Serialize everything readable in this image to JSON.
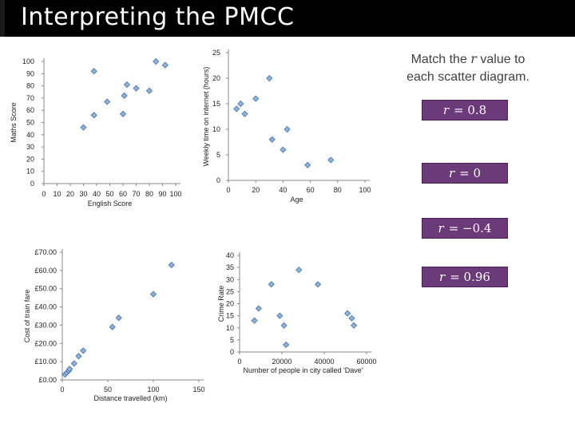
{
  "header": {
    "title": "Interpreting the PMCC"
  },
  "instruction": {
    "prefix": "Match the ",
    "variable": "r",
    "suffix": " value to each scatter diagram."
  },
  "options": [
    {
      "variable": "r",
      "value": "= 0.8"
    },
    {
      "variable": "r",
      "value": "= 0"
    },
    {
      "variable": "r",
      "value": "= −0.4"
    },
    {
      "variable": "r",
      "value": "= 0.96"
    }
  ],
  "colors": {
    "marker_fill": "#8fb3dc",
    "marker_stroke": "#3f6fa6",
    "option_bg": "#6b3a78"
  },
  "chart_data": [
    {
      "type": "scatter",
      "xlabel": "English Score",
      "ylabel": "Maths Score",
      "xlim": [
        0,
        100
      ],
      "ylim": [
        0,
        100
      ],
      "xticks": [
        "0",
        "10",
        "20",
        "30",
        "40",
        "50",
        "60",
        "70",
        "80",
        "90",
        "100"
      ],
      "yticks": [
        "0",
        "10",
        "20",
        "30",
        "40",
        "50",
        "60",
        "70",
        "80",
        "90",
        "100"
      ],
      "points": [
        [
          30,
          46
        ],
        [
          38,
          56
        ],
        [
          38,
          92
        ],
        [
          48,
          67
        ],
        [
          60,
          57
        ],
        [
          61,
          72
        ],
        [
          63,
          81
        ],
        [
          70,
          78
        ],
        [
          80,
          76
        ],
        [
          85,
          100
        ],
        [
          92,
          97
        ]
      ]
    },
    {
      "type": "scatter",
      "xlabel": "Age",
      "ylabel": "Weekly time on internet (hours)",
      "xlim": [
        0,
        100
      ],
      "ylim": [
        0,
        25
      ],
      "xticks": [
        "0",
        "20",
        "40",
        "60",
        "80",
        "100"
      ],
      "yticks": [
        "0",
        "5",
        "10",
        "15",
        "20",
        "25"
      ],
      "points": [
        [
          6,
          14
        ],
        [
          9,
          15
        ],
        [
          12,
          13
        ],
        [
          20,
          16
        ],
        [
          30,
          20
        ],
        [
          32,
          8
        ],
        [
          40,
          6
        ],
        [
          43,
          10
        ],
        [
          58,
          3
        ],
        [
          75,
          4
        ]
      ]
    },
    {
      "type": "scatter",
      "xlabel": "Distance travelled (km)",
      "ylabel": "Cost of train fare",
      "xlim": [
        0,
        150
      ],
      "ylim": [
        0,
        70
      ],
      "xticks": [
        "0",
        "50",
        "100",
        "150"
      ],
      "yticks": [
        "£0.00",
        "£10.00",
        "£20.00",
        "£30.00",
        "£40.00",
        "£50.00",
        "£60.00",
        "£70.00"
      ],
      "points": [
        [
          3,
          3
        ],
        [
          5,
          4
        ],
        [
          7,
          5
        ],
        [
          8,
          6
        ],
        [
          13,
          9
        ],
        [
          18,
          13
        ],
        [
          23,
          16
        ],
        [
          55,
          29
        ],
        [
          62,
          34
        ],
        [
          100,
          47
        ],
        [
          120,
          63
        ]
      ]
    },
    {
      "type": "scatter",
      "xlabel": "Number of people in city called 'Dave'",
      "ylabel": "Crime Rate",
      "xlim": [
        0,
        60000
      ],
      "ylim": [
        0,
        40
      ],
      "xticks": [
        "0",
        "20000",
        "40000",
        "60000"
      ],
      "yticks": [
        "0",
        "5",
        "10",
        "15",
        "20",
        "25",
        "30",
        "35",
        "40"
      ],
      "points": [
        [
          7000,
          13
        ],
        [
          9000,
          18
        ],
        [
          15000,
          28
        ],
        [
          19000,
          15
        ],
        [
          21000,
          11
        ],
        [
          22000,
          3
        ],
        [
          28000,
          34
        ],
        [
          37000,
          28
        ],
        [
          51000,
          16
        ],
        [
          53000,
          14
        ],
        [
          54000,
          11
        ]
      ]
    }
  ]
}
